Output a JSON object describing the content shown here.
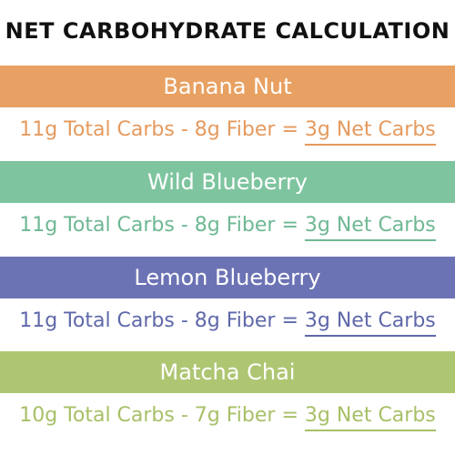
{
  "title": "NET CARBOHYDRATE CALCULATION",
  "colors": {
    "banana": "#e8a162",
    "blueberry": "#7ec59f",
    "lemon": "#6c73b5",
    "matcha": "#aec672"
  },
  "flavors": [
    {
      "name": "Banana Nut",
      "equation": "11g Total Carbs - 8g Fiber = ",
      "result": "3g Net Carbs"
    },
    {
      "name": "Wild Blueberry",
      "equation": "11g Total Carbs - 8g Fiber = ",
      "result": "3g Net Carbs"
    },
    {
      "name": "Lemon Blueberry",
      "equation": "11g Total Carbs - 8g Fiber = ",
      "result": "3g Net Carbs"
    },
    {
      "name": "Matcha Chai",
      "equation": "10g Total Carbs - 7g Fiber = ",
      "result": "3g Net Carbs"
    }
  ]
}
